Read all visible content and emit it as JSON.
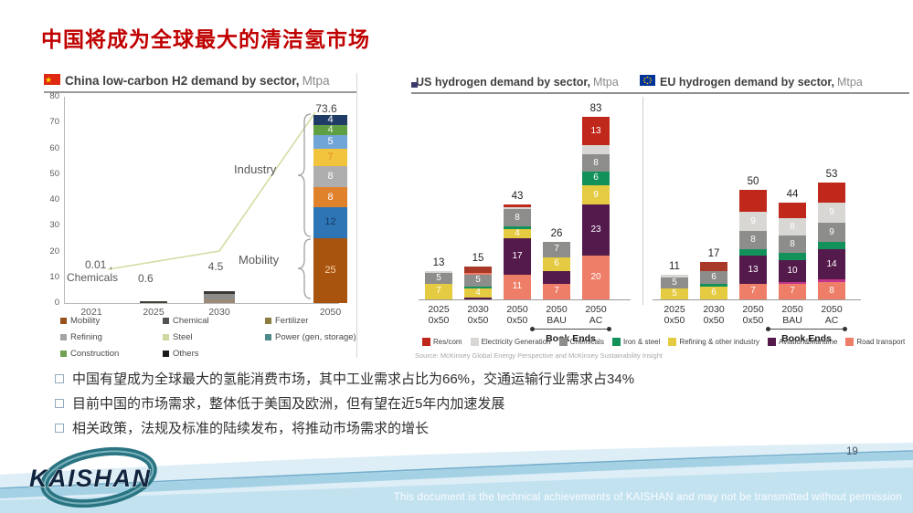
{
  "title": "中国将成为全球最大的清洁氢市场",
  "page_number": "19",
  "logo_text": "KAISHAN",
  "footer_note": "This document is the technical achievements of KAISHAN and may not be transmitted without permission",
  "source": "Source: McKinsey Global Energy Perspective and McKinsey Sustainability Insight",
  "book_ends_label": "Book Ends",
  "bullets": [
    "中国有望成为全球最大的氢能消费市场，其中工业需求占比为66%，交通运输行业需求占34%",
    "目前中国的市场需求，整体低于美国及欧洲，但有望在近5年内加速发展",
    "相关政策，法规及标准的陆续发布，将推动市场需求的增长"
  ],
  "sector_colors": {
    "rescom": "#c0281c",
    "rescom_dark": "#a93a2a",
    "electricity": "#d9d7d4",
    "chemicals": "#8d8d8b",
    "iron": "#12915a",
    "refining": "#e5cb41",
    "aviation": "#551a4c",
    "road": "#ee7e68",
    "magenta": "#c2348b"
  },
  "sector_legend": [
    {
      "label": "Res/com",
      "k": "rescom"
    },
    {
      "label": "Electricity Generation",
      "k": "electricity"
    },
    {
      "label": "Chemicals",
      "k": "chemicals"
    },
    {
      "label": "Iron & steel",
      "k": "iron"
    },
    {
      "label": "Refining & other industry",
      "k": "refining"
    },
    {
      "label": "Aviation&Maritime",
      "k": "aviation"
    },
    {
      "label": "Road transport",
      "k": "road"
    }
  ],
  "chart_data": [
    {
      "id": "china",
      "type": "bar",
      "title_text": "China low-carbon H2 demand by sector,",
      "unit": "Mtpa",
      "ylim": [
        0,
        80
      ],
      "yticks": [
        0,
        10,
        20,
        30,
        40,
        50,
        60,
        70,
        80
      ],
      "categories": [
        "2021",
        "2025",
        "2030",
        "2050"
      ],
      "totals": [
        0.01,
        0.6,
        4.5,
        73.6
      ],
      "value_labels": {
        "y2021": "0.01 ,",
        "chemicals": "Chemicals",
        "y2025": "0.6",
        "y2030": "4.5",
        "y2050": "73.6"
      },
      "annotations": {
        "industry": "Industry",
        "mobility": "Mobility"
      },
      "bars": [
        {
          "category": "2021",
          "segments": [
            {
              "v": 0.01,
              "c": "#55504a"
            }
          ]
        },
        {
          "category": "2025",
          "segments": [
            {
              "v": 0.6,
              "c": "#44403b"
            }
          ]
        },
        {
          "category": "2030",
          "segments": [
            {
              "v": 1.3,
              "c": "#9b8a75"
            },
            {
              "v": 2.2,
              "c": "#8f8d8a"
            },
            {
              "v": 1.0,
              "c": "#3c3835"
            }
          ]
        },
        {
          "category": "2050",
          "segments": [
            {
              "v": 25,
              "label": "25",
              "c": "#a8540f",
              "tc": "#fbd3a6"
            },
            {
              "v": 12,
              "label": "12",
              "c": "#2e75b6",
              "tc": "#1b3a5e"
            },
            {
              "v": 8,
              "label": "8",
              "c": "#e0812c",
              "tc": "#ffffff"
            },
            {
              "v": 8,
              "label": "8",
              "c": "#aeaeae",
              "tc": "#ffffff"
            },
            {
              "v": 7,
              "label": "7",
              "c": "#f2c33c",
              "tc": "#e08a2e"
            },
            {
              "v": 5,
              "label": "5",
              "c": "#72a5d7",
              "tc": "#ffffff"
            },
            {
              "v": 4,
              "label": "4",
              "c": "#5f9e43",
              "tc": "#e9f2dd"
            },
            {
              "v": 4,
              "label": "4",
              "c": "#1f3b66",
              "tc": "#ffffff"
            }
          ]
        }
      ],
      "legend": [
        {
          "label": "Mobility",
          "c": "#96511d"
        },
        {
          "label": "Chemical",
          "c": "#525252"
        },
        {
          "label": "Fertilizer",
          "c": "#8b7c3f"
        },
        {
          "label": "Refining",
          "c": "#a3a3a3"
        },
        {
          "label": "Steel",
          "c": "#cdd89f"
        },
        {
          "label": "Power (gen, storage)",
          "c": "#4c8a8a"
        },
        {
          "label": "Construction",
          "c": "#72a053"
        },
        {
          "label": "Others",
          "c": "#1a1a1a"
        }
      ]
    },
    {
      "id": "us",
      "type": "bar",
      "title_text": "US hydrogen demand by sector,",
      "unit": "Mtpa",
      "categories": [
        "2025 0x50",
        "2030 0x50",
        "2050 0x50",
        "2050 BAU",
        "2050 AC"
      ],
      "totals": [
        13,
        15,
        43,
        26,
        83
      ],
      "bars": [
        [
          {
            "v": 7,
            "label": "7",
            "k": "refining"
          },
          {
            "v": 5,
            "label": "5",
            "k": "chemicals"
          },
          {
            "v": 1,
            "k": "electricity"
          }
        ],
        [
          {
            "v": 1,
            "k": "aviation"
          },
          {
            "v": 4,
            "label": "4",
            "k": "refining"
          },
          {
            "v": 1,
            "k": "iron"
          },
          {
            "v": 5,
            "label": "5",
            "k": "chemicals"
          },
          {
            "v": 1,
            "k": "road"
          },
          {
            "v": 3,
            "k": "rescom_dark"
          }
        ],
        [
          {
            "v": 11,
            "label": "11",
            "k": "road"
          },
          {
            "v": 17,
            "label": "17",
            "k": "aviation"
          },
          {
            "v": 4,
            "label": "4",
            "k": "refining"
          },
          {
            "v": 1,
            "k": "iron"
          },
          {
            "v": 8,
            "label": "8",
            "k": "chemicals"
          },
          {
            "v": 1,
            "k": "electricity"
          },
          {
            "v": 1,
            "k": "rescom"
          }
        ],
        [
          {
            "v": 7,
            "label": "7",
            "k": "road"
          },
          {
            "v": 6,
            "k": "aviation"
          },
          {
            "v": 6,
            "label": "6",
            "k": "refining"
          },
          {
            "v": 7,
            "label": "7",
            "k": "chemicals"
          }
        ],
        [
          {
            "v": 20,
            "label": "20",
            "k": "road"
          },
          {
            "v": 23,
            "label": "23",
            "k": "aviation"
          },
          {
            "v": 9,
            "label": "9",
            "k": "refining"
          },
          {
            "v": 6,
            "label": "6",
            "k": "iron"
          },
          {
            "v": 8,
            "label": "8",
            "k": "chemicals"
          },
          {
            "v": 4,
            "k": "electricity"
          },
          {
            "v": 13,
            "label": "13",
            "k": "rescom"
          }
        ]
      ]
    },
    {
      "id": "eu",
      "type": "bar",
      "title_text": "EU hydrogen demand by sector,",
      "unit": "Mtpa",
      "categories": [
        "2025 0x50",
        "2030 0x50",
        "2050 0x50",
        "2050 BAU",
        "2050 AC"
      ],
      "totals": [
        11,
        17,
        50,
        44,
        53
      ],
      "bars": [
        [
          {
            "v": 5,
            "label": "5",
            "k": "refining"
          },
          {
            "v": 5,
            "label": "5",
            "k": "chemicals"
          },
          {
            "v": 1,
            "k": "electricity"
          }
        ],
        [
          {
            "v": 6,
            "label": "6",
            "k": "refining"
          },
          {
            "v": 1,
            "k": "iron"
          },
          {
            "v": 6,
            "label": "6",
            "k": "chemicals"
          },
          {
            "v": 4,
            "k": "rescom_dark"
          }
        ],
        [
          {
            "v": 7,
            "label": "7",
            "k": "road"
          },
          {
            "v": 13,
            "label": "13",
            "k": "aviation"
          },
          {
            "v": 3,
            "k": "iron"
          },
          {
            "v": 8,
            "label": "8",
            "k": "chemicals"
          },
          {
            "v": 9,
            "label": "9",
            "k": "electricity"
          },
          {
            "v": 10,
            "k": "rescom"
          }
        ],
        [
          {
            "v": 7,
            "label": "7",
            "k": "road"
          },
          {
            "v": 1,
            "k": "magenta"
          },
          {
            "v": 10,
            "label": "10",
            "k": "aviation"
          },
          {
            "v": 3,
            "k": "iron"
          },
          {
            "v": 8,
            "label": "8",
            "k": "chemicals"
          },
          {
            "v": 8,
            "label": "8",
            "k": "electricity"
          },
          {
            "v": 7,
            "k": "rescom"
          }
        ],
        [
          {
            "v": 8,
            "label": "8",
            "k": "road"
          },
          {
            "v": 1,
            "k": "magenta"
          },
          {
            "v": 14,
            "label": "14",
            "k": "aviation"
          },
          {
            "v": 3,
            "k": "iron"
          },
          {
            "v": 9,
            "label": "9",
            "k": "chemicals"
          },
          {
            "v": 9,
            "label": "9",
            "k": "electricity"
          },
          {
            "v": 9,
            "k": "rescom"
          }
        ]
      ]
    }
  ]
}
